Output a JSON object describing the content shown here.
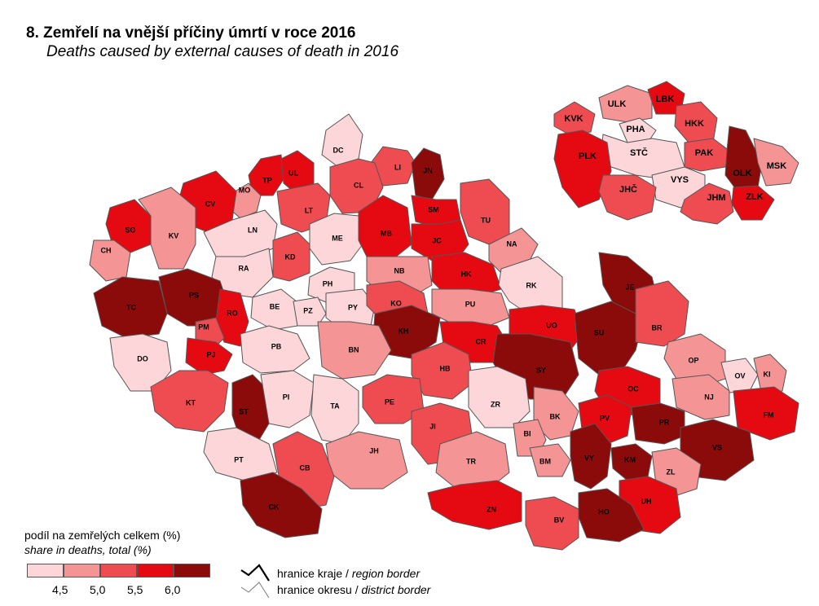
{
  "title": "8. Zemřelí na vnější příčiny úmrtí v roce 2016",
  "subtitle": "Deaths caused by external causes of death in 2016",
  "colors": {
    "c1": "#fcd6d9",
    "c2": "#f49494",
    "c3": "#ef4c52",
    "c4": "#e50a12",
    "c5": "#8b0a0a",
    "border": "#000000",
    "district_border": "#777777"
  },
  "legend": {
    "title": "podíl na zemřelých celkem (%)",
    "subtitle": "share in deaths, total (%)",
    "ticks": [
      "4,5",
      "5,0",
      "5,5",
      "6,0"
    ],
    "region_border": "hranice kraje / ",
    "region_border_en": "region border",
    "district_border": "hranice okresu / ",
    "district_border_en": "district border"
  },
  "districts": [
    {
      "code": "DC",
      "c": "c1"
    },
    {
      "code": "LI",
      "c": "c3"
    },
    {
      "code": "JN",
      "c": "c5"
    },
    {
      "code": "TP",
      "c": "c4"
    },
    {
      "code": "UL",
      "c": "c4"
    },
    {
      "code": "MO",
      "c": "c2"
    },
    {
      "code": "CL",
      "c": "c3"
    },
    {
      "code": "CV",
      "c": "c4"
    },
    {
      "code": "LT",
      "c": "c3"
    },
    {
      "code": "SM",
      "c": "c4"
    },
    {
      "code": "TU",
      "c": "c3"
    },
    {
      "code": "SO",
      "c": "c4"
    },
    {
      "code": "KV",
      "c": "c2"
    },
    {
      "code": "LN",
      "c": "c1"
    },
    {
      "code": "ME",
      "c": "c1"
    },
    {
      "code": "MB",
      "c": "c4"
    },
    {
      "code": "JC",
      "c": "c4"
    },
    {
      "code": "NA",
      "c": "c2"
    },
    {
      "code": "CH",
      "c": "c2"
    },
    {
      "code": "RA",
      "c": "c1"
    },
    {
      "code": "KD",
      "c": "c3"
    },
    {
      "code": "NB",
      "c": "c2"
    },
    {
      "code": "PH",
      "c": "c1"
    },
    {
      "code": "HK",
      "c": "c4"
    },
    {
      "code": "RK",
      "c": "c1"
    },
    {
      "code": "PS",
      "c": "c5"
    },
    {
      "code": "TC",
      "c": "c5"
    },
    {
      "code": "RO",
      "c": "c4"
    },
    {
      "code": "BE",
      "c": "c1"
    },
    {
      "code": "PZ",
      "c": "c1"
    },
    {
      "code": "PY",
      "c": "c1"
    },
    {
      "code": "KO",
      "c": "c3"
    },
    {
      "code": "PU",
      "c": "c2"
    },
    {
      "code": "JE",
      "c": "c5"
    },
    {
      "code": "PM",
      "c": "c3"
    },
    {
      "code": "PJ",
      "c": "c4"
    },
    {
      "code": "KH",
      "c": "c5"
    },
    {
      "code": "UO",
      "c": "c4"
    },
    {
      "code": "SU",
      "c": "c5"
    },
    {
      "code": "BR",
      "c": "c3"
    },
    {
      "code": "CR",
      "c": "c4"
    },
    {
      "code": "DO",
      "c": "c1"
    },
    {
      "code": "PB",
      "c": "c1"
    },
    {
      "code": "BN",
      "c": "c2"
    },
    {
      "code": "HB",
      "c": "c3"
    },
    {
      "code": "SY",
      "c": "c5"
    },
    {
      "code": "OP",
      "c": "c2"
    },
    {
      "code": "OV",
      "c": "c1"
    },
    {
      "code": "KI",
      "c": "c2"
    },
    {
      "code": "OC",
      "c": "c4"
    },
    {
      "code": "NJ",
      "c": "c2"
    },
    {
      "code": "KT",
      "c": "c3"
    },
    {
      "code": "ST",
      "c": "c5"
    },
    {
      "code": "PI",
      "c": "c1"
    },
    {
      "code": "TA",
      "c": "c1"
    },
    {
      "code": "PE",
      "c": "c3"
    },
    {
      "code": "ZR",
      "c": "c1"
    },
    {
      "code": "BK",
      "c": "c2"
    },
    {
      "code": "PV",
      "c": "c4"
    },
    {
      "code": "PR",
      "c": "c5"
    },
    {
      "code": "FM",
      "c": "c4"
    },
    {
      "code": "JI",
      "c": "c3"
    },
    {
      "code": "BI",
      "c": "c2"
    },
    {
      "code": "JH",
      "c": "c2"
    },
    {
      "code": "VS",
      "c": "c5"
    },
    {
      "code": "PT",
      "c": "c1"
    },
    {
      "code": "BM",
      "c": "c2"
    },
    {
      "code": "VY",
      "c": "c5"
    },
    {
      "code": "KM",
      "c": "c5"
    },
    {
      "code": "ZL",
      "c": "c2"
    },
    {
      "code": "CB",
      "c": "c3"
    },
    {
      "code": "TR",
      "c": "c2"
    },
    {
      "code": "ZN",
      "c": "c4"
    },
    {
      "code": "UH",
      "c": "c4"
    },
    {
      "code": "CK",
      "c": "c5"
    },
    {
      "code": "BV",
      "c": "c3"
    },
    {
      "code": "HO",
      "c": "c5"
    }
  ],
  "regions": [
    {
      "code": "ULK",
      "c": "c2"
    },
    {
      "code": "LBK",
      "c": "c4"
    },
    {
      "code": "KVK",
      "c": "c3"
    },
    {
      "code": "PHA",
      "c": "c1"
    },
    {
      "code": "HKK",
      "c": "c3"
    },
    {
      "code": "STČ",
      "c": "c1"
    },
    {
      "code": "PAK",
      "c": "c3"
    },
    {
      "code": "PLK",
      "c": "c4"
    },
    {
      "code": "OLK",
      "c": "c5"
    },
    {
      "code": "MSK",
      "c": "c2"
    },
    {
      "code": "VYS",
      "c": "c1"
    },
    {
      "code": "JHČ",
      "c": "c3"
    },
    {
      "code": "JHM",
      "c": "c3"
    },
    {
      "code": "ZLK",
      "c": "c4"
    }
  ]
}
